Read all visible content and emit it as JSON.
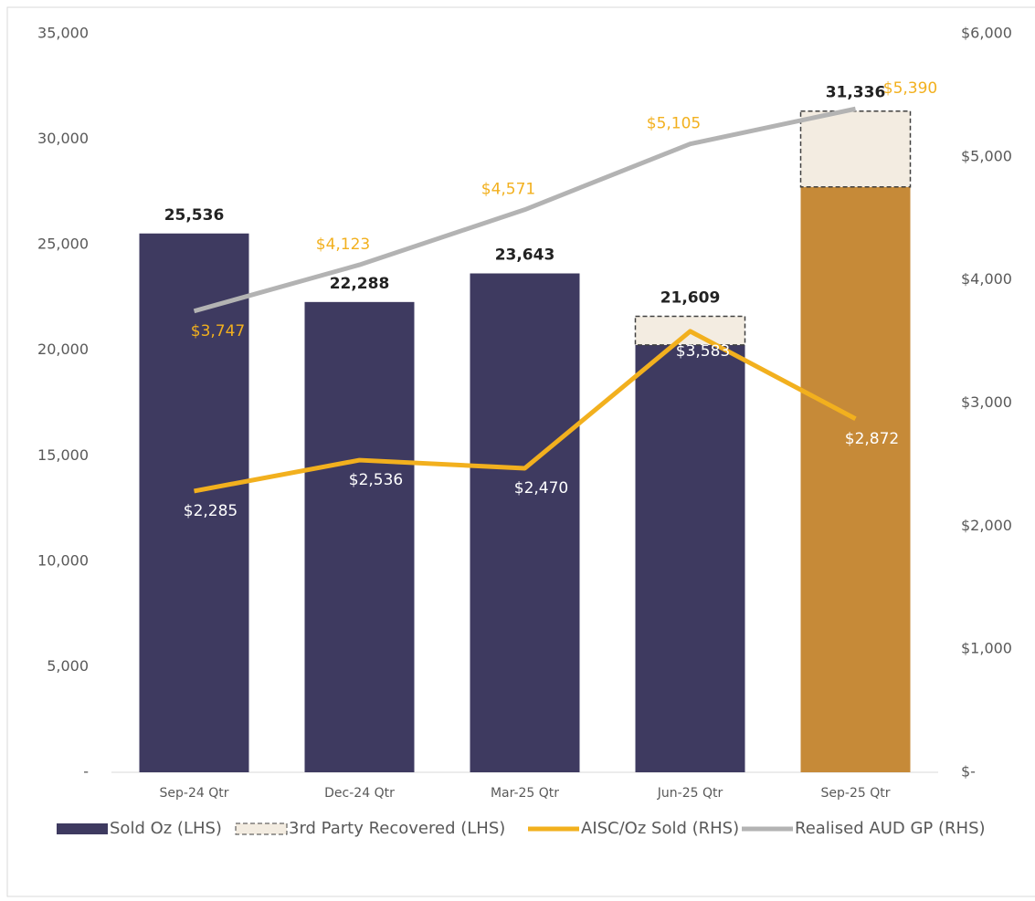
{
  "chart_data": {
    "type": "bar",
    "categories": [
      "Sep-24 Qtr",
      "Dec-24 Qtr",
      "Mar-25 Qtr",
      "Jun-25 Qtr",
      "Sep-25 Qtr"
    ],
    "series": [
      {
        "name": "Sold Oz (LHS)",
        "color": "#3e3a60",
        "colors": [
          "#3e3a60",
          "#3e3a60",
          "#3e3a60",
          "#3e3a60",
          "#c68a38"
        ],
        "values": [
          25536,
          22288,
          23643,
          20250,
          27740
        ],
        "kind": "bar"
      },
      {
        "name": "3rd Party Recovered (LHS)",
        "color": "#f3ece1",
        "values": [
          null,
          null,
          null,
          1359,
          3596
        ],
        "kind": "bar"
      },
      {
        "name": "AISC/Oz Sold (RHS)",
        "color": "#f2b01e",
        "axis": "y2",
        "kind": "line",
        "values": [
          2285,
          2536,
          2470,
          3583,
          2872
        ],
        "value_labels": [
          "$2,285",
          "$2,536",
          "$2,470",
          "$3,583",
          "$2,872"
        ],
        "label_color": "#ffffff"
      },
      {
        "name": "Realised AUD GP (RHS)",
        "color": "#b3b3b3",
        "axis": "y2",
        "kind": "line",
        "values": [
          3747,
          4123,
          4571,
          5105,
          5390
        ],
        "value_labels": [
          "$3,747",
          "$4,123",
          "$4,571",
          "$5,105",
          "$5,390"
        ],
        "label_color": "#f2b01e"
      }
    ],
    "totals": [
      25536,
      22288,
      23643,
      21609,
      31336
    ],
    "total_labels": [
      "25,536",
      "22,288",
      "23,643",
      "21,609",
      "31,336"
    ],
    "ylim": [
      0,
      35000
    ],
    "yticks": [
      {
        "value": 0,
        "label": "-"
      },
      {
        "value": 5000,
        "label": "5,000"
      },
      {
        "value": 10000,
        "label": "10,000"
      },
      {
        "value": 15000,
        "label": "15,000"
      },
      {
        "value": 20000,
        "label": "20,000"
      },
      {
        "value": 25000,
        "label": "25,000"
      },
      {
        "value": 30000,
        "label": "30,000"
      },
      {
        "value": 35000,
        "label": "35,000"
      }
    ],
    "y2lim": [
      0,
      6000
    ],
    "y2ticks": [
      {
        "value": 0,
        "label": "$-"
      },
      {
        "value": 1000,
        "label": "$1,000"
      },
      {
        "value": 2000,
        "label": "$2,000"
      },
      {
        "value": 3000,
        "label": "$3,000"
      },
      {
        "value": 4000,
        "label": "$4,000"
      },
      {
        "value": 5000,
        "label": "$5,000"
      },
      {
        "value": 6000,
        "label": "$6,000"
      }
    ],
    "legend": "bottom"
  }
}
